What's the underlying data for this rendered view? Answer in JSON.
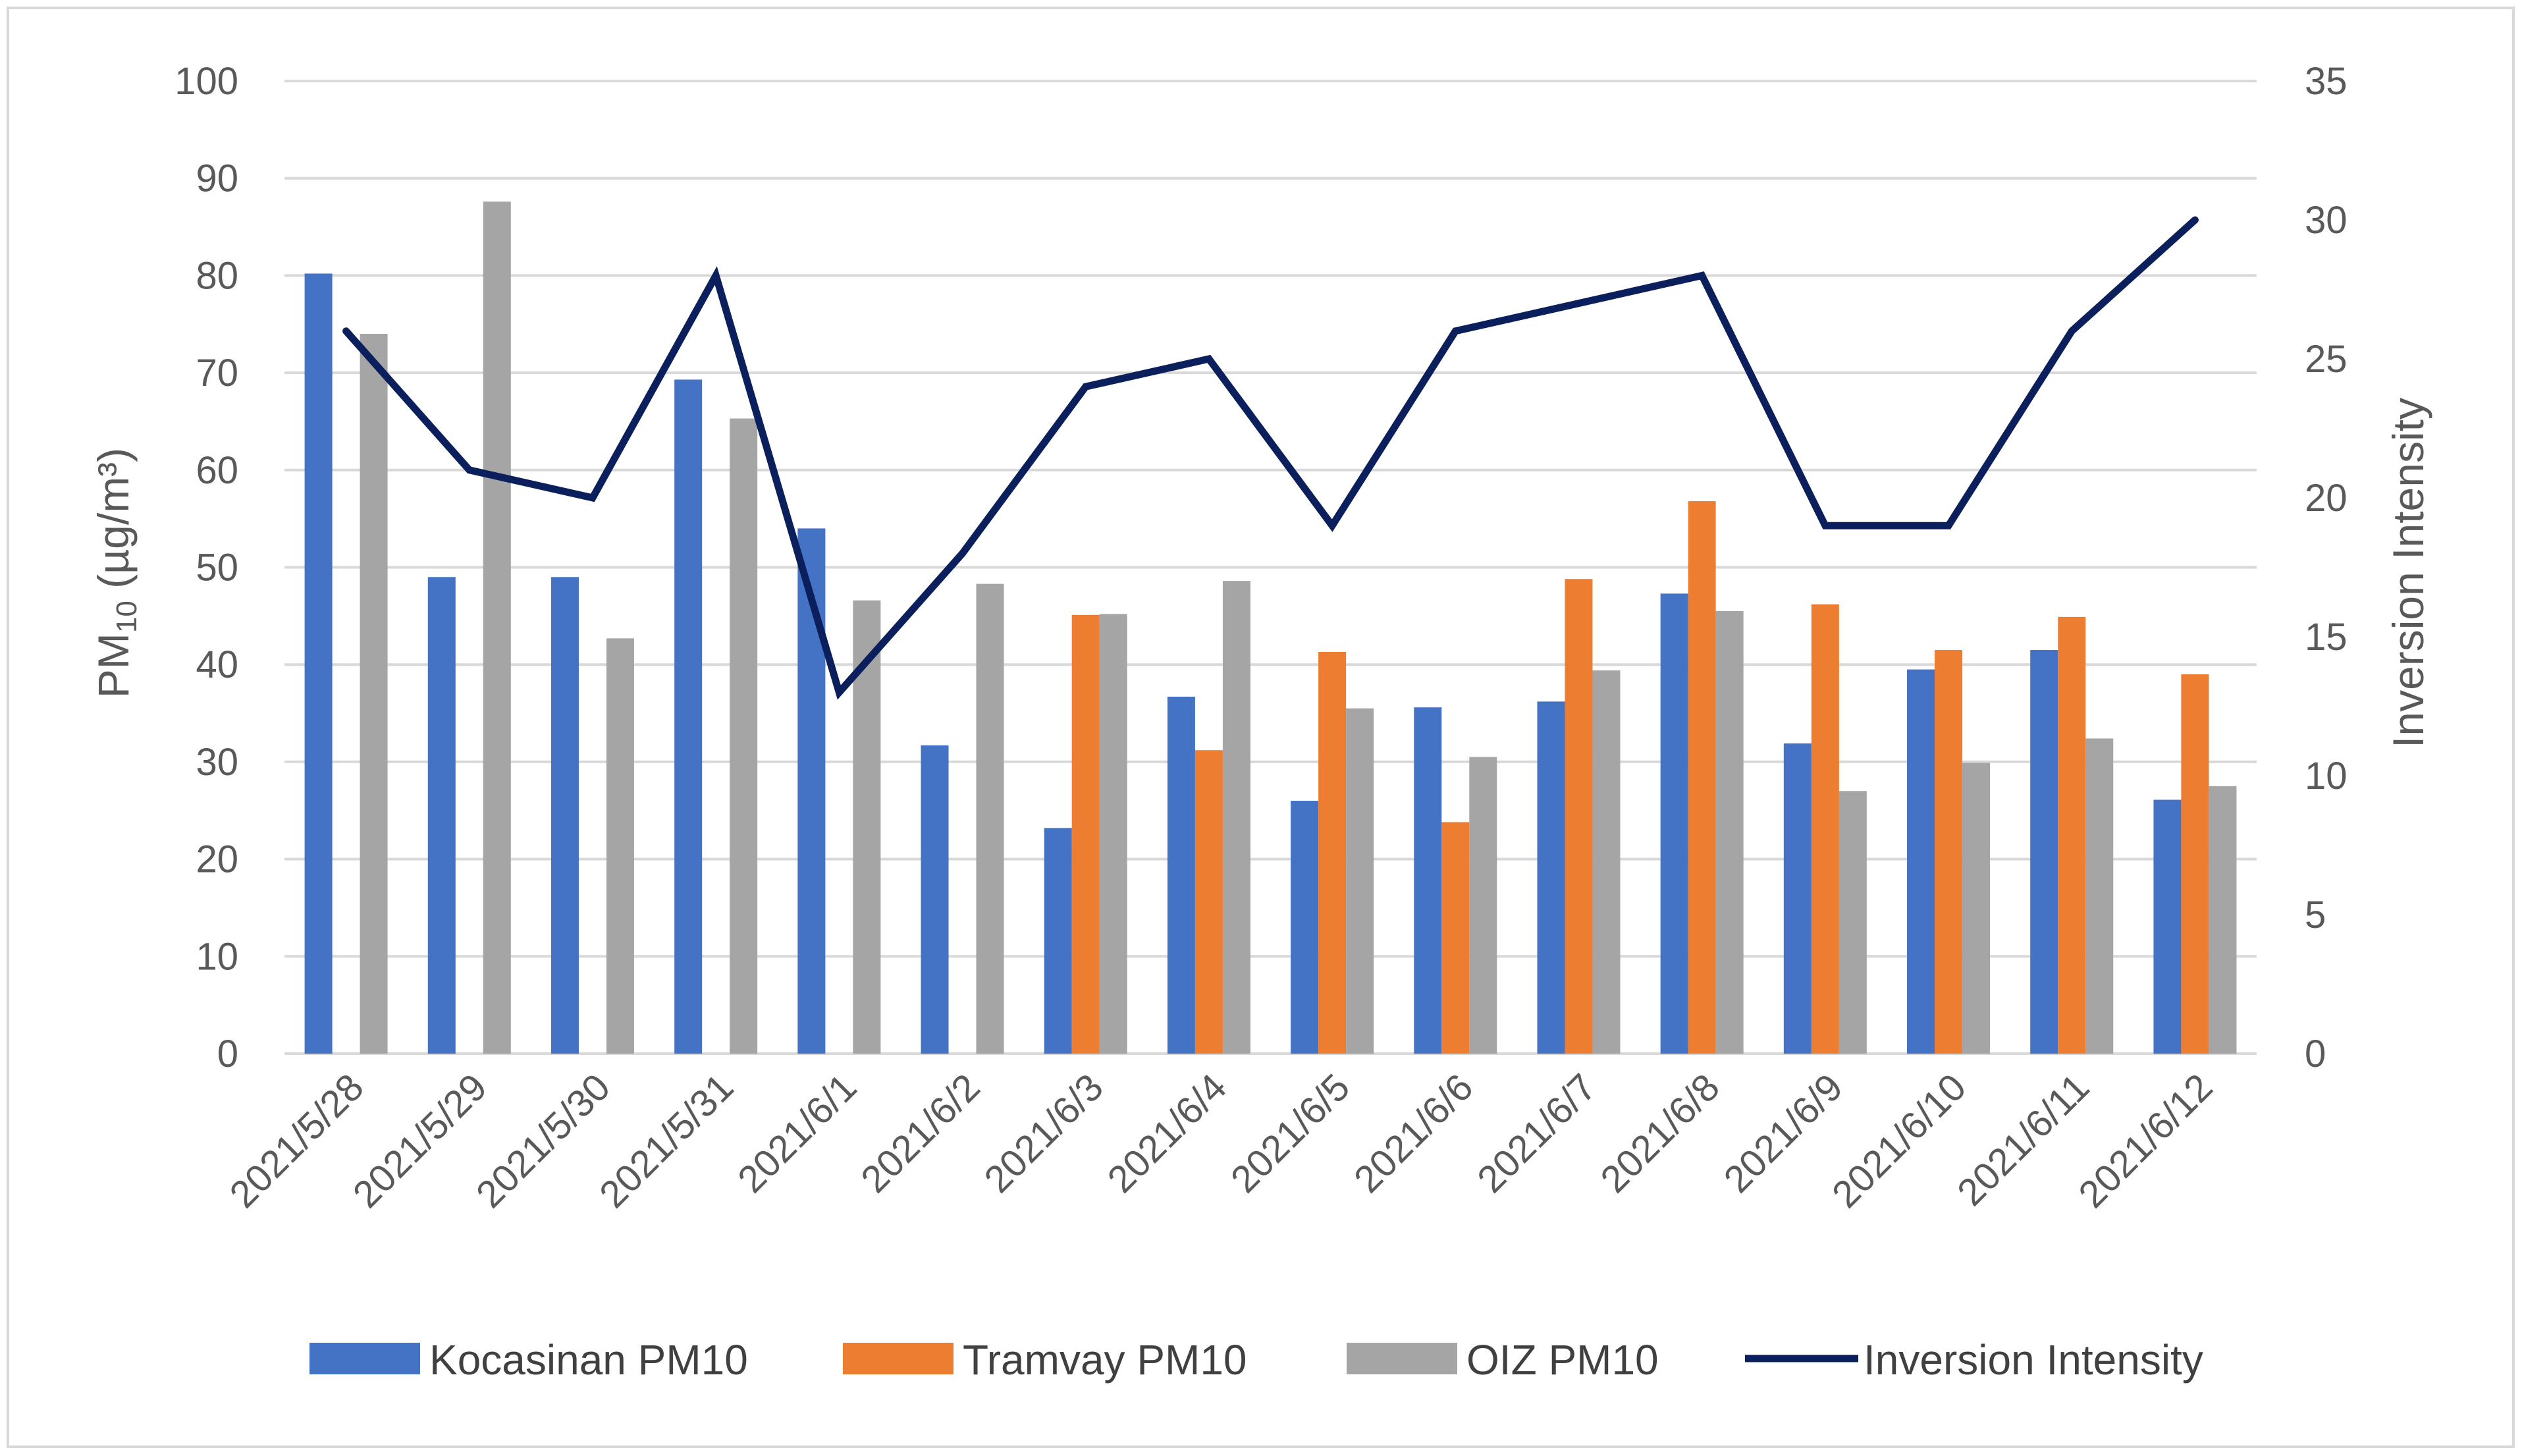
{
  "chart_data": {
    "type": "bar",
    "categories": [
      "2021/5/28",
      "2021/5/29",
      "2021/5/30",
      "2021/5/31",
      "2021/6/1",
      "2021/6/2",
      "2021/6/3",
      "2021/6/4",
      "2021/6/5",
      "2021/6/6",
      "2021/6/7",
      "2021/6/8",
      "2021/6/9",
      "2021/6/10",
      "2021/6/11",
      "2021/6/12"
    ],
    "series": [
      {
        "name": "Kocasinan PM10",
        "type": "bar",
        "axis": "left",
        "color": "#4472c4",
        "values": [
          80.2,
          49,
          49,
          69.3,
          54,
          31.7,
          23.2,
          36.7,
          26,
          35.6,
          36.2,
          47.3,
          31.9,
          39.5,
          41.5,
          26.1
        ]
      },
      {
        "name": "Tramvay PM10",
        "type": "bar",
        "axis": "left",
        "color": "#ed7d31",
        "values": [
          null,
          null,
          null,
          null,
          null,
          null,
          45.1,
          31.2,
          41.3,
          23.8,
          48.8,
          56.8,
          46.2,
          41.5,
          44.9,
          39
        ]
      },
      {
        "name": "OIZ PM10",
        "type": "bar",
        "axis": "left",
        "color": "#a5a5a5",
        "values": [
          74,
          87.6,
          42.7,
          65.3,
          46.6,
          48.3,
          45.2,
          48.6,
          35.5,
          30.5,
          39.4,
          45.5,
          27,
          29.9,
          32.4,
          27.5
        ]
      },
      {
        "name": "Inversion Intensity",
        "type": "line",
        "axis": "right",
        "color": "#0b1f5c",
        "values": [
          26,
          21,
          20,
          28,
          13,
          18,
          24,
          25,
          19,
          26,
          27,
          28,
          19,
          19,
          26,
          30
        ]
      }
    ],
    "y_left": {
      "label_main": "PM",
      "label_sub": "10",
      "label_rest": " (µg/m³)",
      "min": 0,
      "max": 100,
      "step": 10,
      "ticks": [
        "0",
        "10",
        "20",
        "30",
        "40",
        "50",
        "60",
        "70",
        "80",
        "90",
        "100"
      ]
    },
    "y_right": {
      "label": "Inversion Intensity",
      "min": 0,
      "max": 35,
      "step": 5,
      "ticks": [
        "0",
        "5",
        "10",
        "15",
        "20",
        "25",
        "30",
        "35"
      ]
    },
    "grid": true,
    "legend_position": "bottom"
  },
  "legend": {
    "kocasinan": "Kocasinan PM10",
    "tramvay": "Tramvay PM10",
    "oiz": "OIZ PM10",
    "inversion": "Inversion Intensity"
  }
}
